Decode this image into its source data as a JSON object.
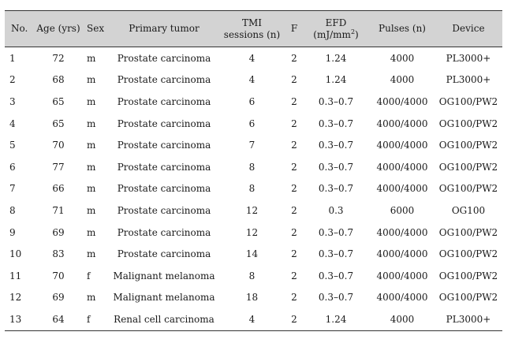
{
  "table": {
    "headers": {
      "no": "No.",
      "age": "Age (yrs)",
      "sex": "Sex",
      "tumor": "Primary tumor",
      "tmi_line1": "TMI",
      "tmi_line2": "sessions (n)",
      "f": "F",
      "efd_prefix": "EFD (mJ/mm",
      "efd_sup": "2",
      "efd_suffix": ")",
      "pulses": "Pulses (n)",
      "device": "Device"
    },
    "rows": [
      {
        "no": "1",
        "age": "72",
        "sex": "m",
        "tumor": "Prostate carcinoma",
        "tmi": "4",
        "f": "2",
        "efd": "1.24",
        "pulses": "4000",
        "device": "PL3000+"
      },
      {
        "no": "2",
        "age": "68",
        "sex": "m",
        "tumor": "Prostate carcinoma",
        "tmi": "4",
        "f": "2",
        "efd": "1.24",
        "pulses": "4000",
        "device": "PL3000+"
      },
      {
        "no": "3",
        "age": "65",
        "sex": "m",
        "tumor": "Prostate carcinoma",
        "tmi": "6",
        "f": "2",
        "efd": "0.3–0.7",
        "pulses": "4000/4000",
        "device": "OG100/PW2"
      },
      {
        "no": "4",
        "age": "65",
        "sex": "m",
        "tumor": "Prostate carcinoma",
        "tmi": "6",
        "f": "2",
        "efd": "0.3–0.7",
        "pulses": "4000/4000",
        "device": "OG100/PW2"
      },
      {
        "no": "5",
        "age": "70",
        "sex": "m",
        "tumor": "Prostate carcinoma",
        "tmi": "7",
        "f": "2",
        "efd": "0.3–0.7",
        "pulses": "4000/4000",
        "device": "OG100/PW2"
      },
      {
        "no": "6",
        "age": "77",
        "sex": "m",
        "tumor": "Prostate carcinoma",
        "tmi": "8",
        "f": "2",
        "efd": "0.3–0.7",
        "pulses": "4000/4000",
        "device": "OG100/PW2"
      },
      {
        "no": "7",
        "age": "66",
        "sex": "m",
        "tumor": "Prostate carcinoma",
        "tmi": "8",
        "f": "2",
        "efd": "0.3–0.7",
        "pulses": "4000/4000",
        "device": "OG100/PW2"
      },
      {
        "no": "8",
        "age": "71",
        "sex": "m",
        "tumor": "Prostate carcinoma",
        "tmi": "12",
        "f": "2",
        "efd": "0.3",
        "pulses": "6000",
        "device": "OG100"
      },
      {
        "no": "9",
        "age": "69",
        "sex": "m",
        "tumor": "Prostate carcinoma",
        "tmi": "12",
        "f": "2",
        "efd": "0.3–0.7",
        "pulses": "4000/4000",
        "device": "OG100/PW2"
      },
      {
        "no": "10",
        "age": "83",
        "sex": "m",
        "tumor": "Prostate carcinoma",
        "tmi": "14",
        "f": "2",
        "efd": "0.3–0.7",
        "pulses": "4000/4000",
        "device": "OG100/PW2"
      },
      {
        "no": "11",
        "age": "70",
        "sex": "f",
        "tumor": "Malignant melanoma",
        "tmi": "8",
        "f": "2",
        "efd": "0.3–0.7",
        "pulses": "4000/4000",
        "device": "OG100/PW2"
      },
      {
        "no": "12",
        "age": "69",
        "sex": "m",
        "tumor": "Malignant melanoma",
        "tmi": "18",
        "f": "2",
        "efd": "0.3–0.7",
        "pulses": "4000/4000",
        "device": "OG100/PW2"
      },
      {
        "no": "13",
        "age": "64",
        "sex": "f",
        "tumor": "Renal cell carcinoma",
        "tmi": "4",
        "f": "2",
        "efd": "1.24",
        "pulses": "4000",
        "device": "PL3000+"
      }
    ]
  }
}
